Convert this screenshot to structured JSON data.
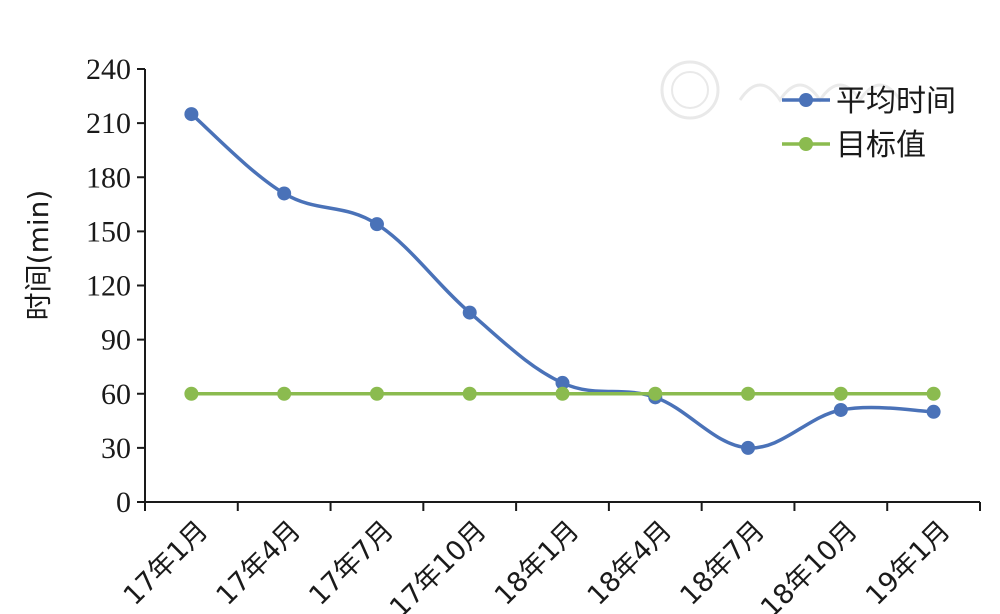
{
  "chart_data": {
    "type": "line",
    "ylabel": "时间(min)",
    "xlabel": "",
    "categories": [
      "17年1月",
      "17年4月",
      "17年7月",
      "17年10月",
      "18年1月",
      "18年4月",
      "18年7月",
      "18年10月",
      "19年1月"
    ],
    "ylim": [
      0,
      240
    ],
    "yticks": [
      0,
      30,
      60,
      90,
      120,
      150,
      180,
      210,
      240
    ],
    "grid": false,
    "legend_position": "top-right",
    "series": [
      {
        "name": "平均时间",
        "color": "#4a72b8",
        "smooth": true,
        "values": [
          215,
          171,
          154,
          105,
          66,
          58,
          30,
          51,
          50
        ]
      },
      {
        "name": "目标值",
        "color": "#8bbb4f",
        "smooth": false,
        "values": [
          60,
          60,
          60,
          60,
          60,
          60,
          60,
          60,
          60
        ]
      }
    ]
  }
}
